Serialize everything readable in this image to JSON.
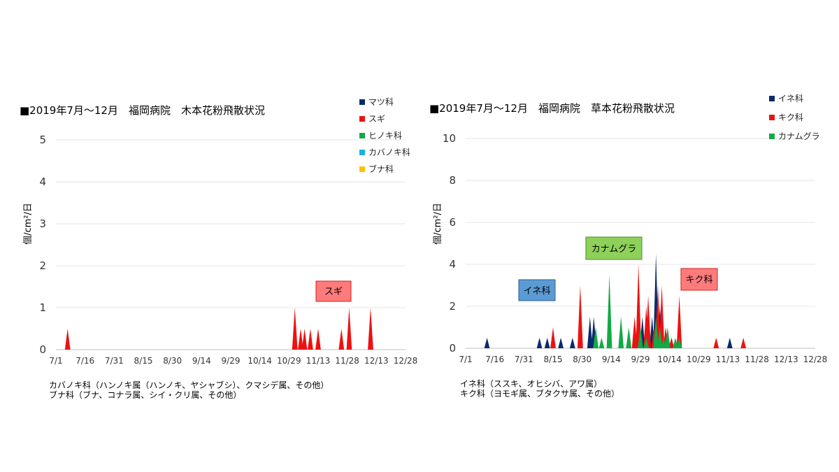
{
  "chart_data": [
    {
      "type": "area",
      "title": "■2019年7月～12月　福岡病院　木本花粉飛散状況",
      "ylabel": "個/cm²/日",
      "ylim": [
        0,
        5
      ],
      "yticks": [
        0,
        1,
        2,
        3,
        4,
        5
      ],
      "xlim": [
        0,
        180
      ],
      "xticks": [
        {
          "label": "7/1",
          "day": 0
        },
        {
          "label": "7/16",
          "day": 15
        },
        {
          "label": "7/31",
          "day": 30
        },
        {
          "label": "8/15",
          "day": 45
        },
        {
          "label": "8/30",
          "day": 60
        },
        {
          "label": "9/14",
          "day": 75
        },
        {
          "label": "9/29",
          "day": 90
        },
        {
          "label": "10/14",
          "day": 105
        },
        {
          "label": "10/29",
          "day": 120
        },
        {
          "label": "11/13",
          "day": 135
        },
        {
          "label": "11/28",
          "day": 150
        },
        {
          "label": "12/13",
          "day": 165
        },
        {
          "label": "12/28",
          "day": 180
        }
      ],
      "grid": true,
      "legend_position": "right",
      "series": [
        {
          "name": "マツ科",
          "color": "#0b2a6b",
          "points": []
        },
        {
          "name": "スギ",
          "color": "#ee1111",
          "points": [
            [
              6,
              0.5
            ],
            [
              123,
              1.0
            ],
            [
              126,
              0.5
            ],
            [
              128,
              0.5
            ],
            [
              131,
              0.5
            ],
            [
              135,
              0.5
            ],
            [
              147,
              0.5
            ],
            [
              151,
              1.0
            ],
            [
              162,
              1.0
            ]
          ]
        },
        {
          "name": "ヒノキ科",
          "color": "#11aa44",
          "points": []
        },
        {
          "name": "カバノキ科",
          "color": "#1ab0e6",
          "points": []
        },
        {
          "name": "ブナ科",
          "color": "#ffc000",
          "points": []
        }
      ],
      "annotations": [
        {
          "text": "スギ",
          "fill": "#ff7b7b",
          "stroke": "#cc2020"
        }
      ],
      "footnotes": [
        "カバノキ科（ハンノキ属（ハンノキ、ヤシャブシ）、クマシデ属、その他）",
        "ブナ科（ブナ、コナラ属、シイ・クリ属、その他）"
      ]
    },
    {
      "type": "area",
      "title": "■2019年7月～12月　福岡病院　草本花粉飛散状況",
      "ylabel": "個/cm²/日",
      "ylim": [
        0,
        10
      ],
      "yticks": [
        0,
        2,
        4,
        6,
        8,
        10
      ],
      "xlim": [
        0,
        180
      ],
      "xticks": [
        {
          "label": "7/1",
          "day": 0
        },
        {
          "label": "7/16",
          "day": 15
        },
        {
          "label": "7/31",
          "day": 30
        },
        {
          "label": "8/15",
          "day": 45
        },
        {
          "label": "8/30",
          "day": 60
        },
        {
          "label": "9/14",
          "day": 75
        },
        {
          "label": "9/29",
          "day": 90
        },
        {
          "label": "10/14",
          "day": 105
        },
        {
          "label": "10/29",
          "day": 120
        },
        {
          "label": "11/13",
          "day": 135
        },
        {
          "label": "11/28",
          "day": 150
        },
        {
          "label": "12/13",
          "day": 165
        },
        {
          "label": "12/28",
          "day": 180
        }
      ],
      "grid": true,
      "legend_position": "right",
      "series": [
        {
          "name": "イネ科",
          "color": "#0b2a6b",
          "points": [
            [
              11,
              0.5
            ],
            [
              38,
              0.5
            ],
            [
              42,
              0.5
            ],
            [
              49,
              0.5
            ],
            [
              55,
              0.5
            ],
            [
              64,
              1.5
            ],
            [
              66,
              1.5
            ],
            [
              91,
              1.5
            ],
            [
              96,
              1.5
            ],
            [
              98,
              4.5
            ],
            [
              100,
              2.0
            ],
            [
              104,
              0.5
            ],
            [
              106,
              0.5
            ],
            [
              136,
              0.5
            ]
          ]
        },
        {
          "name": "キク科",
          "color": "#ee1111",
          "points": [
            [
              45,
              1.0
            ],
            [
              59,
              3.0
            ],
            [
              87,
              1.5
            ],
            [
              89,
              4.0
            ],
            [
              93,
              2.0
            ],
            [
              94,
              2.5
            ],
            [
              97,
              1.0
            ],
            [
              99,
              3.0
            ],
            [
              101,
              3.0
            ],
            [
              103,
              1.0
            ],
            [
              106,
              0.5
            ],
            [
              110,
              2.5
            ],
            [
              129,
              0.5
            ],
            [
              143,
              0.5
            ]
          ]
        },
        {
          "name": "カナムグラ",
          "color": "#11aa44",
          "points": [
            [
              67,
              1.0
            ],
            [
              70,
              0.5
            ],
            [
              74,
              3.5
            ],
            [
              80,
              1.5
            ],
            [
              84,
              1.0
            ],
            [
              90,
              1.0
            ],
            [
              93,
              0.5
            ],
            [
              98,
              1.5
            ],
            [
              100,
              1.0
            ],
            [
              102,
              0.5
            ],
            [
              104,
              1.0
            ],
            [
              108,
              0.5
            ],
            [
              110,
              0.5
            ]
          ]
        }
      ],
      "annotations": [
        {
          "text": "イネ科",
          "fill": "#5b9bd5",
          "stroke": "#2e5d8e"
        },
        {
          "text": "カナムグラ",
          "fill": "#8ed15a",
          "stroke": "#4e8a2a"
        },
        {
          "text": "キク科",
          "fill": "#ff7b7b",
          "stroke": "#cc2020"
        }
      ],
      "footnotes": [
        "イネ科（ススキ、オヒシバ、アワ属）",
        "キク科（ヨモギ属、ブタクサ属、その他）"
      ]
    }
  ]
}
